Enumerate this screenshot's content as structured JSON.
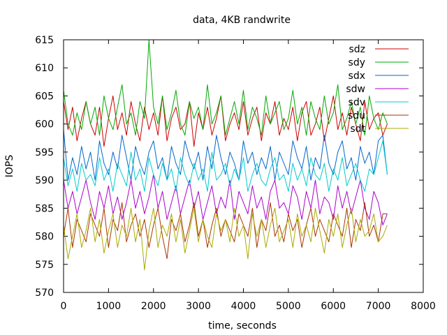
{
  "chart_data": {
    "type": "line",
    "title": "data, 4KB randwrite",
    "xlabel": "time, seconds",
    "ylabel": "IOPS",
    "xlim": [
      0,
      8000
    ],
    "ylim": [
      570,
      615
    ],
    "xticks": [
      0,
      1000,
      2000,
      3000,
      4000,
      5000,
      6000,
      7000,
      8000
    ],
    "yticks": [
      570,
      575,
      580,
      585,
      590,
      595,
      600,
      605,
      610,
      615
    ],
    "grid": false,
    "legend_position": "top-right",
    "x": [
      0,
      100,
      200,
      300,
      400,
      500,
      600,
      700,
      800,
      900,
      1000,
      1100,
      1200,
      1300,
      1400,
      1500,
      1600,
      1700,
      1800,
      1900,
      2000,
      2100,
      2200,
      2300,
      2400,
      2500,
      2600,
      2700,
      2800,
      2900,
      3000,
      3100,
      3200,
      3300,
      3400,
      3500,
      3600,
      3700,
      3800,
      3900,
      4000,
      4100,
      4200,
      4300,
      4400,
      4500,
      4600,
      4700,
      4800,
      4900,
      5000,
      5100,
      5200,
      5300,
      5400,
      5500,
      5600,
      5700,
      5800,
      5900,
      6000,
      6100,
      6200,
      6300,
      6400,
      6500,
      6600,
      6700,
      6800,
      6900,
      7000,
      7100,
      7200
    ],
    "series": [
      {
        "name": "sdz",
        "color": "#cc0000",
        "values": [
          604,
          599,
          603,
          597,
          601,
          604,
          600,
          598,
          603,
          596,
          601,
          605,
          599,
          602,
          598,
          604,
          600,
          597,
          603,
          599,
          602,
          598,
          605,
          597,
          601,
          603,
          599,
          600,
          604,
          596,
          602,
          599,
          603,
          598,
          601,
          605,
          597,
          600,
          602,
          599,
          604,
          598,
          601,
          603,
          597,
          602,
          600,
          604,
          598,
          601,
          599,
          603,
          597,
          602,
          604,
          598,
          600,
          603,
          597,
          601,
          605,
          599,
          602,
          598,
          603,
          600,
          597,
          604,
          599,
          601,
          602,
          598,
          600
        ]
      },
      {
        "name": "sdy",
        "color": "#00aa00",
        "values": [
          606,
          600,
          598,
          602,
          599,
          604,
          600,
          603,
          598,
          605,
          601,
          599,
          603,
          607,
          600,
          602,
          598,
          604,
          601,
          615,
          603,
          600,
          605,
          599,
          602,
          606,
          600,
          598,
          604,
          601,
          603,
          599,
          607,
          600,
          602,
          605,
          598,
          601,
          604,
          600,
          606,
          599,
          603,
          601,
          598,
          605,
          600,
          602,
          604,
          599,
          601,
          606,
          600,
          603,
          598,
          604,
          601,
          599,
          605,
          600,
          602,
          607,
          599,
          601,
          604,
          600,
          603,
          598,
          605,
          601,
          599,
          602,
          600
        ]
      },
      {
        "name": "sdx",
        "color": "#0066cc",
        "values": [
          599,
          590,
          594,
          591,
          596,
          592,
          595,
          590,
          597,
          593,
          591,
          595,
          592,
          598,
          594,
          590,
          596,
          593,
          591,
          595,
          597,
          592,
          594,
          590,
          596,
          593,
          591,
          597,
          594,
          592,
          595,
          590,
          596,
          592,
          598,
          594,
          591,
          595,
          593,
          590,
          597,
          593,
          595,
          591,
          594,
          592,
          596,
          590,
          595,
          593,
          591,
          597,
          594,
          592,
          596,
          590,
          594,
          592,
          598,
          593,
          591,
          595,
          597,
          592,
          594,
          590,
          596,
          593,
          595,
          591,
          597,
          598,
          591
        ]
      },
      {
        "name": "sdw",
        "color": "#aa00cc",
        "values": [
          590,
          585,
          588,
          584,
          587,
          590,
          586,
          583,
          588,
          585,
          589,
          584,
          587,
          583,
          586,
          590,
          585,
          588,
          584,
          587,
          591,
          585,
          588,
          583,
          586,
          589,
          584,
          587,
          590,
          585,
          588,
          583,
          586,
          589,
          584,
          587,
          585,
          590,
          583,
          588,
          586,
          584,
          589,
          585,
          587,
          583,
          588,
          590,
          585,
          586,
          584,
          589,
          587,
          583,
          588,
          585,
          590,
          584,
          587,
          586,
          583,
          589,
          585,
          588,
          584,
          587,
          590,
          585,
          583,
          588,
          586,
          582,
          584
        ]
      },
      {
        "name": "sdv",
        "color": "#00cccc",
        "values": [
          594,
          589,
          592,
          588,
          593,
          590,
          591,
          589,
          594,
          590,
          592,
          588,
          593,
          591,
          589,
          595,
          590,
          592,
          588,
          594,
          591,
          589,
          593,
          590,
          592,
          588,
          594,
          591,
          589,
          593,
          590,
          592,
          588,
          595,
          590,
          591,
          593,
          589,
          592,
          590,
          594,
          588,
          591,
          593,
          590,
          589,
          592,
          594,
          590,
          591,
          588,
          593,
          590,
          592,
          589,
          594,
          591,
          590,
          593,
          588,
          592,
          590,
          594,
          589,
          591,
          593,
          590,
          588,
          592,
          591,
          594,
          597,
          591
        ]
      },
      {
        "name": "sdu",
        "color": "#aa3300",
        "values": [
          580,
          585,
          578,
          583,
          581,
          579,
          584,
          582,
          580,
          585,
          578,
          583,
          581,
          586,
          579,
          582,
          584,
          580,
          583,
          578,
          582,
          585,
          580,
          576,
          583,
          581,
          584,
          579,
          582,
          586,
          580,
          583,
          578,
          582,
          585,
          580,
          583,
          581,
          579,
          584,
          582,
          580,
          585,
          578,
          583,
          581,
          586,
          580,
          582,
          579,
          584,
          581,
          583,
          578,
          582,
          585,
          580,
          583,
          581,
          579,
          584,
          582,
          580,
          585,
          578,
          583,
          581,
          586,
          580,
          582,
          579,
          584,
          584
        ]
      },
      {
        "name": "sdt",
        "color": "#aaaa00",
        "values": [
          582,
          576,
          580,
          584,
          578,
          581,
          585,
          579,
          583,
          577,
          581,
          584,
          578,
          582,
          580,
          585,
          579,
          583,
          574,
          581,
          585,
          578,
          582,
          580,
          584,
          579,
          583,
          577,
          581,
          585,
          579,
          583,
          580,
          578,
          584,
          581,
          583,
          579,
          585,
          580,
          582,
          576,
          584,
          580,
          583,
          578,
          582,
          585,
          579,
          581,
          583,
          578,
          584,
          580,
          582,
          579,
          585,
          581,
          577,
          583,
          580,
          584,
          578,
          582,
          585,
          579,
          583,
          580,
          581,
          584,
          579,
          580,
          582
        ]
      }
    ]
  }
}
